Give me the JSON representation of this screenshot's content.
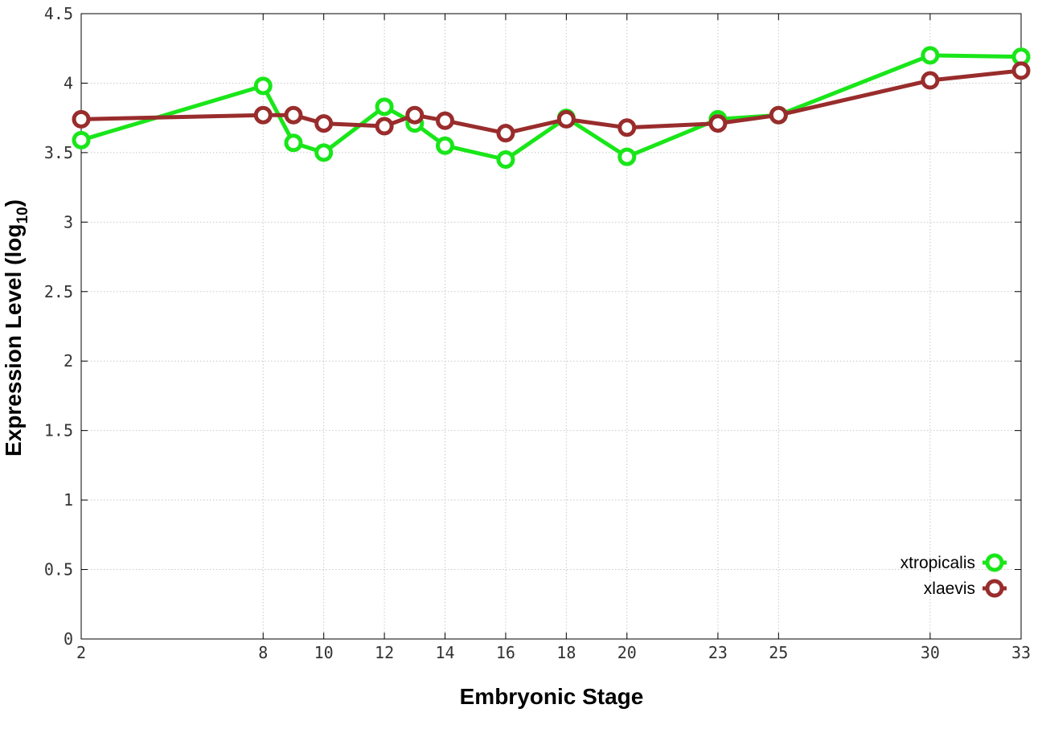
{
  "chart_data": {
    "type": "line",
    "xlabel": "Embryonic Stage",
    "ylabel": "Expression Level (log",
    "ylabel_sub": "10",
    "ylabel_close": ")",
    "xlim": [
      2,
      33
    ],
    "ylim": [
      0,
      4.5
    ],
    "x_ticks": [
      2,
      8,
      10,
      12,
      14,
      16,
      18,
      20,
      23,
      25,
      30,
      33
    ],
    "y_ticks": [
      0,
      0.5,
      1,
      1.5,
      2,
      2.5,
      3,
      3.5,
      4,
      4.5
    ],
    "y_tick_labels": [
      "0",
      "0.5",
      "1",
      "1.5",
      "2",
      "2.5",
      "3",
      "3.5",
      "4",
      "4.5"
    ],
    "grid": true,
    "legend_position": "bottom-right",
    "series": [
      {
        "name": "xtropicalis",
        "color": "#19e619",
        "x": [
          2,
          8,
          9,
          10,
          12,
          13,
          14,
          16,
          18,
          20,
          23,
          25,
          30,
          33
        ],
        "values": [
          3.59,
          3.98,
          3.57,
          3.5,
          3.83,
          3.71,
          3.55,
          3.45,
          3.75,
          3.47,
          3.74,
          3.77,
          4.2,
          4.19
        ]
      },
      {
        "name": "xlaevis",
        "color": "#992c2c",
        "x": [
          2,
          8,
          9,
          10,
          12,
          13,
          14,
          16,
          18,
          20,
          23,
          25,
          30,
          33
        ],
        "values": [
          3.74,
          3.77,
          3.77,
          3.71,
          3.69,
          3.77,
          3.73,
          3.64,
          3.74,
          3.68,
          3.71,
          3.77,
          4.02,
          4.09
        ]
      }
    ]
  }
}
